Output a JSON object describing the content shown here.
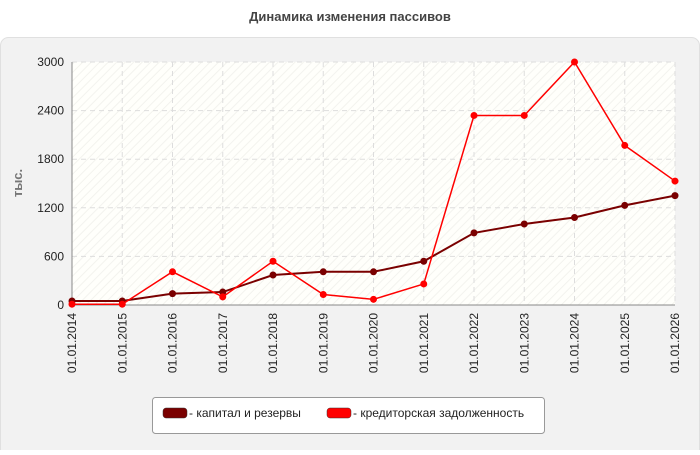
{
  "chart_data": {
    "type": "line",
    "title": "Динамика изменения пассивов",
    "y_label": "тыс.",
    "categories": [
      "01.01.2014",
      "01.01.2015",
      "01.01.2016",
      "01.01.2017",
      "01.01.2018",
      "01.01.2019",
      "01.01.2020",
      "01.01.2021",
      "01.01.2022",
      "01.01.2023",
      "01.01.2024",
      "01.01.2025",
      "01.01.2026"
    ],
    "series": [
      {
        "name": "- капитал и резервы",
        "color": "#7a0000",
        "values": [
          50,
          50,
          140,
          160,
          370,
          410,
          410,
          540,
          890,
          1000,
          1080,
          1230,
          1350
        ]
      },
      {
        "name": "- кредиторская задолженность",
        "color": "#ff0000",
        "values": [
          10,
          10,
          410,
          100,
          540,
          130,
          70,
          260,
          2340,
          2340,
          3000,
          1970,
          1530
        ]
      }
    ],
    "ylim": [
      0,
      3000
    ],
    "yticks": [
      0,
      600,
      1200,
      1800,
      2400,
      3000
    ],
    "grid": true
  }
}
